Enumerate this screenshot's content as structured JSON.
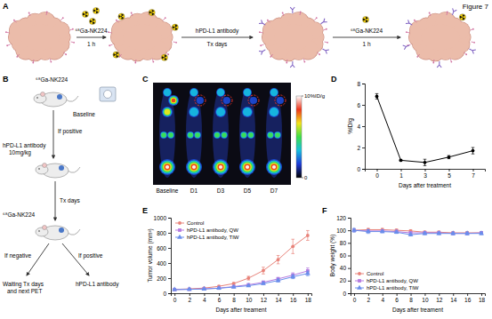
{
  "figure": {
    "label": "Figure 7",
    "panel_labels": [
      "A",
      "B",
      "C",
      "D",
      "E",
      "F"
    ],
    "a": {
      "arrows": [
        {
          "top": "⁶⁸Ga-NK224",
          "bottom": "1 h"
        },
        {
          "top": "hPD-L1 antibody",
          "bottom": "Tx days"
        },
        {
          "top": "⁶⁸Ga-NK224",
          "bottom": "1 h"
        }
      ]
    },
    "b": {
      "tracer": "⁶⁸Ga-NK224",
      "baseline": "Baseline",
      "if_positive": "If positive",
      "antibody": "hPD-L1 antibody",
      "dose": "10mg/kg",
      "tx_days": "Tx days",
      "tracer_again": "⁶⁸Ga-NK224",
      "if_negative": "If negative",
      "if_positive_again": "If positive",
      "waiting": "Waiting Tx days",
      "next_pet": "and next PET",
      "antibody_again": "hPD-L1 antibody"
    },
    "c": {
      "time_points": [
        "Baseline",
        "D1",
        "D3",
        "D5",
        "D7"
      ],
      "colorbar": {
        "range": [
          0,
          10
        ],
        "ticks": [
          {
            "value": 10,
            "label": "10%ID/g"
          },
          0
        ]
      }
    }
  },
  "chart_data": [
    {
      "type": "line",
      "categories": [
        "0",
        "1",
        "3",
        "5",
        "7"
      ],
      "x_label": "Days after treatment",
      "y_label": "%ID/g",
      "ylim": [
        0,
        8
      ],
      "yticks": [
        0,
        2,
        4,
        6,
        8
      ],
      "color": "#000000",
      "marker": "circle",
      "values": [
        6.8,
        0.8,
        0.6,
        1.1,
        1.7
      ],
      "errors": [
        0.25,
        0.05,
        0.3,
        0.15,
        0.3
      ]
    },
    {
      "type": "line",
      "x": [
        0,
        2,
        4,
        6,
        8,
        10,
        12,
        14,
        16,
        18
      ],
      "x_label": "Days after treament",
      "y_label": "Tumor volume (mm³)",
      "xlim": [
        -0.5,
        18.5
      ],
      "xticks": [
        0,
        2,
        4,
        6,
        8,
        10,
        12,
        14,
        16,
        18
      ],
      "ylim": [
        0,
        1000
      ],
      "yticks": [
        0,
        200,
        400,
        600,
        800,
        1000
      ],
      "legend": "upper left",
      "series": [
        {
          "name": "Control",
          "color": "#e8837a",
          "marker": "circle",
          "values": [
            50,
            58,
            68,
            92,
            128,
            200,
            300,
            445,
            620,
            765
          ],
          "errors": [
            5,
            6,
            8,
            10,
            15,
            25,
            45,
            55,
            95,
            65
          ]
        },
        {
          "name": "hPD-L1 antibody, QW",
          "color": "#b57be0",
          "marker": "square",
          "values": [
            48,
            52,
            58,
            68,
            88,
            112,
            145,
            190,
            240,
            295
          ],
          "errors": [
            4,
            5,
            6,
            6,
            10,
            12,
            15,
            20,
            30,
            40
          ]
        },
        {
          "name": "hPD-L1 antibody, TIW",
          "color": "#6a8deb",
          "marker": "triangle",
          "values": [
            48,
            52,
            56,
            66,
            82,
            100,
            128,
            168,
            218,
            262
          ],
          "errors": [
            4,
            5,
            6,
            6,
            8,
            10,
            14,
            18,
            25,
            30
          ]
        }
      ]
    },
    {
      "type": "line",
      "x": [
        0,
        2,
        4,
        6,
        8,
        10,
        12,
        14,
        16,
        18
      ],
      "x_label": "Days after treament",
      "y_label": "Body weight (%)",
      "xlim": [
        -0.5,
        18.5
      ],
      "xticks": [
        0,
        2,
        4,
        6,
        8,
        10,
        12,
        14,
        16,
        18
      ],
      "ylim": [
        0,
        120
      ],
      "yticks": [
        0,
        20,
        40,
        60,
        80,
        100,
        120
      ],
      "legend": "lower left",
      "series": [
        {
          "name": "Control",
          "color": "#e8837a",
          "marker": "circle",
          "values": [
            100,
            101,
            101,
            100,
            99,
            97,
            97,
            96,
            96,
            96
          ],
          "errors": [
            2,
            2,
            2,
            2,
            2,
            2,
            2,
            2,
            2,
            2
          ]
        },
        {
          "name": "hPD-L1 antibody, QW",
          "color": "#b57be0",
          "marker": "square",
          "values": [
            100,
            99,
            99,
            98,
            96,
            96,
            96,
            95,
            95,
            96
          ],
          "errors": [
            2,
            2,
            2,
            2,
            2,
            2,
            2,
            2,
            2,
            2
          ]
        },
        {
          "name": "hPD-L1 antibody, TIW",
          "color": "#6a8deb",
          "marker": "triangle",
          "values": [
            100,
            98,
            98,
            97,
            93,
            95,
            95,
            95,
            95,
            95
          ],
          "errors": [
            3,
            3,
            2,
            2,
            2,
            2,
            2,
            2,
            2,
            2
          ]
        }
      ]
    }
  ]
}
